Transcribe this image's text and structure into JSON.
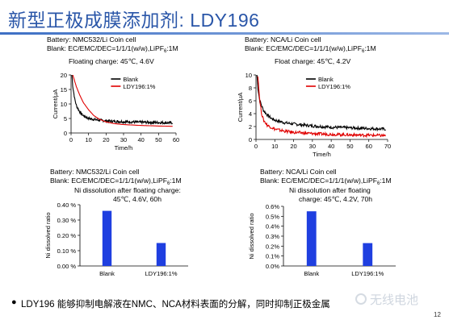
{
  "slide": {
    "title": "新型正极成膜添加剂: LDY196",
    "footer": "LDY196 能够抑制电解液在NMC、NCA材料表面的分解，同时抑制正极金属",
    "page_number": "12",
    "watermark": "无线电池",
    "accent_color": "#2a56a8"
  },
  "captions": {
    "tl_battery": "Battery: NMC532/Li Coin cell",
    "tl_blank_pre": "Blank: EC/EMC/DEC=1/1/1(w/w),LiPF",
    "tl_blank_sub": "6",
    "tl_blank_post": ":1M",
    "tl_condition": "Floating charge: 45℃, 4.6V",
    "tr_battery": "Battery: NCA/Li Coin cell",
    "tr_blank_pre": "Blank: EC/EMC/DEC=1/1/1(w/w),LiPF",
    "tr_blank_sub": "6",
    "tr_blank_post": ":1M",
    "tr_condition": "Float charge: 45℃, 4.2V",
    "bl_battery": "Battery: NMC532/Li Coin cell",
    "bl_blank_pre": "Blank: EC/EMC/DEC=1/1/1(w/w),LiPF",
    "bl_blank_sub": "6",
    "bl_blank_post": ":1M",
    "bl_cond1": "Ni dissolution after floating charge:",
    "bl_cond2": "45℃, 4.6V, 60h",
    "br_battery": "Battery: NCA/Li Coin cell",
    "br_blank_pre": "Blank: EC/EMC/DEC=1/1/1(w/w),LiPF",
    "br_blank_sub": "6",
    "br_blank_post": ":1M",
    "br_cond1": "Ni dissolution after floating",
    "br_cond2": "charge: 45℃, 4.2V, 70h"
  },
  "chart_data": [
    {
      "type": "line",
      "id": "tl",
      "xlabel": "Time/h",
      "ylabel": "Current/μA",
      "xlim": [
        0,
        60
      ],
      "ylim": [
        0,
        20
      ],
      "xticks": [
        0,
        10,
        20,
        30,
        40,
        50,
        60
      ],
      "yticks": [
        0,
        5,
        10,
        15,
        20
      ],
      "legend_position": "top-right",
      "series": [
        {
          "name": "Blank",
          "color": "#000000",
          "noisy": true,
          "x": [
            0.5,
            1,
            2,
            3,
            5,
            7,
            10,
            15,
            20,
            25,
            30,
            40,
            50,
            58
          ],
          "y": [
            20,
            16,
            12,
            9.5,
            7.2,
            6,
            5,
            4.5,
            4.2,
            4.0,
            3.9,
            3.7,
            3.6,
            3.5
          ]
        },
        {
          "name": "LDY196:1%",
          "color": "#e00000",
          "noisy": false,
          "x": [
            1,
            2,
            3,
            5,
            7,
            10,
            13,
            16,
            20,
            25,
            30,
            40,
            50,
            58
          ],
          "y": [
            20,
            18,
            16,
            13,
            10.5,
            8,
            6,
            4.8,
            3.8,
            3.2,
            2.9,
            2.6,
            2.4,
            2.3
          ]
        }
      ]
    },
    {
      "type": "line",
      "id": "tr",
      "xlabel": "Time/h",
      "ylabel": "Current/μA",
      "xlim": [
        0,
        70
      ],
      "ylim": [
        0,
        10
      ],
      "xticks": [
        0,
        10,
        20,
        30,
        40,
        50,
        60,
        70
      ],
      "yticks": [
        0,
        2,
        4,
        6,
        8,
        10
      ],
      "legend_position": "top-right",
      "series": [
        {
          "name": "Blank",
          "color": "#000000",
          "noisy": true,
          "x": [
            0.5,
            1,
            2,
            4,
            6,
            8,
            10,
            15,
            20,
            30,
            40,
            50,
            60,
            69
          ],
          "y": [
            10,
            8,
            6,
            4.5,
            3.8,
            3.3,
            3,
            2.6,
            2.4,
            2.1,
            1.9,
            1.8,
            1.7,
            1.6
          ]
        },
        {
          "name": "LDY196:1%",
          "color": "#e00000",
          "noisy": true,
          "x": [
            1,
            1.5,
            2,
            3,
            4,
            6,
            8,
            10,
            15,
            20,
            30,
            40,
            50,
            60,
            69
          ],
          "y": [
            10,
            8,
            6,
            4,
            3,
            2.2,
            1.9,
            1.6,
            1.3,
            1.1,
            0.9,
            0.8,
            0.7,
            0.65,
            0.6
          ]
        }
      ]
    },
    {
      "type": "bar",
      "id": "bl",
      "ylabel": "Ni dissolved ratio",
      "categories": [
        "Blank",
        "LDY196:1%"
      ],
      "values": [
        0.36,
        0.15
      ],
      "ylim": [
        0,
        0.4
      ],
      "yticks": [
        0.0,
        0.1,
        0.2,
        0.3,
        0.4
      ],
      "ytick_labels": [
        "0.00 %",
        "0.10 %",
        "0.20 %",
        "0.30 %",
        "0.40 %"
      ],
      "bar_color": "#1f3fe0"
    },
    {
      "type": "bar",
      "id": "br",
      "ylabel": "Ni dissolved ratio",
      "categories": [
        "Blank",
        "LDY196:1%"
      ],
      "values": [
        0.55,
        0.23
      ],
      "ylim": [
        0,
        0.6
      ],
      "yticks": [
        0.0,
        0.1,
        0.2,
        0.3,
        0.4,
        0.5,
        0.6
      ],
      "ytick_labels": [
        "0.0%",
        "0.1%",
        "0.2%",
        "0.3%",
        "0.4%",
        "0.5%",
        "0.6%"
      ],
      "bar_color": "#1f3fe0"
    }
  ]
}
